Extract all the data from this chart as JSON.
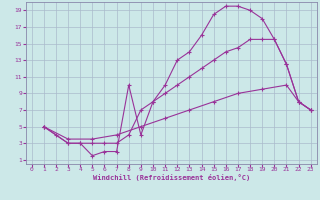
{
  "xlabel": "Windchill (Refroidissement éolien,°C)",
  "bg_color": "#cce8e8",
  "grid_color": "#aabbcc",
  "line_color": "#993399",
  "spine_color": "#8888aa",
  "xlim": [
    -0.5,
    23.5
  ],
  "ylim": [
    0.5,
    20
  ],
  "xticks": [
    0,
    1,
    2,
    3,
    4,
    5,
    6,
    7,
    8,
    9,
    10,
    11,
    12,
    13,
    14,
    15,
    16,
    17,
    18,
    19,
    20,
    21,
    22,
    23
  ],
  "yticks": [
    1,
    3,
    5,
    7,
    9,
    11,
    13,
    15,
    17,
    19
  ],
  "curve1_x": [
    1,
    2,
    3,
    4,
    5,
    6,
    7,
    8,
    9,
    10,
    11,
    12,
    13,
    14,
    15,
    16,
    17,
    18,
    19,
    20,
    21,
    22,
    23
  ],
  "curve1_y": [
    5,
    4,
    3,
    3,
    1.5,
    2,
    2,
    10,
    4,
    8,
    10,
    13,
    14,
    16,
    18.5,
    19.5,
    19.5,
    19,
    18,
    15.5,
    12.5,
    8,
    7
  ],
  "curve2_x": [
    1,
    3,
    4,
    5,
    6,
    7,
    8,
    9,
    10,
    11,
    12,
    13,
    14,
    15,
    16,
    17,
    18,
    19,
    20,
    21,
    22,
    23
  ],
  "curve2_y": [
    5,
    3,
    3,
    3,
    3,
    3,
    4,
    7,
    8,
    9,
    10,
    11,
    12,
    13,
    14,
    14.5,
    15.5,
    15.5,
    15.5,
    12.5,
    8,
    7
  ],
  "curve3_x": [
    1,
    3,
    5,
    7,
    9,
    11,
    13,
    15,
    17,
    19,
    21,
    22,
    23
  ],
  "curve3_y": [
    5,
    3.5,
    3.5,
    4,
    5,
    6,
    7,
    8,
    9,
    9.5,
    10,
    8,
    7
  ]
}
